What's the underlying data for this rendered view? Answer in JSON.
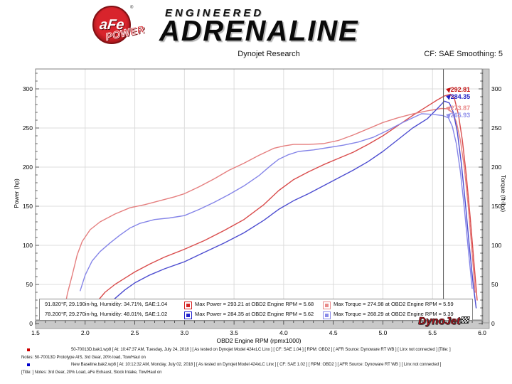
{
  "header": {
    "logo_circle_text": "aFe",
    "logo_power_text": "POWER",
    "logo_reg": "®",
    "brand_line1": "ENGINEERED",
    "brand_line2": "ADRENALINE"
  },
  "subheader": {
    "center": "Dynojet Research",
    "right": "CF: SAE Smoothing: 5"
  },
  "chart_data": {
    "type": "line",
    "xlabel": "OBD2 Engine RPM (rpmx1000)",
    "ylabel_left": "Power (hp)",
    "ylabel_right": "Torque (ft-lbs)",
    "xlim": [
      1.5,
      6.0
    ],
    "ylim": [
      0,
      325
    ],
    "grid": true,
    "x_ticks": [
      "1.5",
      "2.0",
      "2.5",
      "3.0",
      "3.5",
      "4.0",
      "4.5",
      "5.0",
      "5.5",
      "6.0"
    ],
    "y_ticks": [
      0,
      50,
      100,
      150,
      200,
      250,
      300
    ],
    "x_minor_step": 0.1,
    "y_minor_step": 10,
    "cursor_rpm": 5.61,
    "series": [
      {
        "name": "power-afe-intake",
        "unit": "hp",
        "color": "#d94c4c",
        "points": [
          [
            2.02,
            8
          ],
          [
            2.1,
            25
          ],
          [
            2.2,
            40
          ],
          [
            2.3,
            50
          ],
          [
            2.4,
            58
          ],
          [
            2.5,
            66
          ],
          [
            2.65,
            76
          ],
          [
            2.8,
            85
          ],
          [
            3.0,
            95
          ],
          [
            3.2,
            106
          ],
          [
            3.4,
            119
          ],
          [
            3.6,
            133
          ],
          [
            3.8,
            152
          ],
          [
            3.95,
            170
          ],
          [
            4.1,
            184
          ],
          [
            4.25,
            194
          ],
          [
            4.4,
            203
          ],
          [
            4.55,
            211
          ],
          [
            4.7,
            219
          ],
          [
            4.85,
            229
          ],
          [
            5.0,
            240
          ],
          [
            5.15,
            253
          ],
          [
            5.3,
            266
          ],
          [
            5.45,
            278
          ],
          [
            5.55,
            286
          ],
          [
            5.62,
            291
          ],
          [
            5.68,
            293.21
          ],
          [
            5.72,
            288
          ],
          [
            5.76,
            268
          ],
          [
            5.8,
            235
          ],
          [
            5.84,
            190
          ],
          [
            5.88,
            135
          ],
          [
            5.92,
            75
          ],
          [
            5.95,
            30
          ]
        ]
      },
      {
        "name": "torque-afe-intake",
        "unit": "ft-lbs",
        "color": "#e57f7f",
        "points": [
          [
            1.78,
            10
          ],
          [
            1.82,
            38
          ],
          [
            1.87,
            62
          ],
          [
            1.92,
            88
          ],
          [
            1.97,
            105
          ],
          [
            2.05,
            120
          ],
          [
            2.15,
            130
          ],
          [
            2.3,
            140
          ],
          [
            2.45,
            148
          ],
          [
            2.6,
            152
          ],
          [
            2.75,
            157
          ],
          [
            2.9,
            162
          ],
          [
            3.0,
            166
          ],
          [
            3.15,
            175
          ],
          [
            3.3,
            185
          ],
          [
            3.45,
            196
          ],
          [
            3.6,
            205
          ],
          [
            3.75,
            215
          ],
          [
            3.9,
            224
          ],
          [
            4.0,
            227
          ],
          [
            4.1,
            229
          ],
          [
            4.25,
            229
          ],
          [
            4.4,
            230
          ],
          [
            4.55,
            234
          ],
          [
            4.7,
            241
          ],
          [
            4.85,
            249
          ],
          [
            5.0,
            257
          ],
          [
            5.15,
            263
          ],
          [
            5.3,
            268
          ],
          [
            5.45,
            272
          ],
          [
            5.59,
            274.98
          ],
          [
            5.65,
            274.5
          ],
          [
            5.7,
            270
          ],
          [
            5.74,
            258
          ],
          [
            5.78,
            235
          ],
          [
            5.82,
            200
          ],
          [
            5.86,
            150
          ],
          [
            5.9,
            90
          ],
          [
            5.93,
            40
          ]
        ]
      },
      {
        "name": "power-baseline",
        "unit": "hp",
        "color": "#4d4dd0",
        "points": [
          [
            2.12,
            8
          ],
          [
            2.2,
            20
          ],
          [
            2.3,
            32
          ],
          [
            2.4,
            43
          ],
          [
            2.5,
            52
          ],
          [
            2.65,
            62
          ],
          [
            2.8,
            70
          ],
          [
            3.0,
            79
          ],
          [
            3.2,
            91
          ],
          [
            3.4,
            103
          ],
          [
            3.6,
            116
          ],
          [
            3.8,
            132
          ],
          [
            3.95,
            146
          ],
          [
            4.1,
            157
          ],
          [
            4.25,
            166
          ],
          [
            4.4,
            176
          ],
          [
            4.55,
            186
          ],
          [
            4.7,
            196
          ],
          [
            4.85,
            207
          ],
          [
            5.0,
            220
          ],
          [
            5.15,
            235
          ],
          [
            5.3,
            250
          ],
          [
            5.45,
            262
          ],
          [
            5.55,
            275
          ],
          [
            5.62,
            284.35
          ],
          [
            5.67,
            282
          ],
          [
            5.71,
            270
          ],
          [
            5.75,
            245
          ],
          [
            5.79,
            205
          ],
          [
            5.83,
            155
          ],
          [
            5.87,
            100
          ],
          [
            5.91,
            50
          ],
          [
            5.94,
            20
          ]
        ]
      },
      {
        "name": "torque-baseline",
        "unit": "ft-lbs",
        "color": "#8585e8",
        "points": [
          [
            1.95,
            42
          ],
          [
            2.0,
            62
          ],
          [
            2.07,
            80
          ],
          [
            2.15,
            92
          ],
          [
            2.25,
            103
          ],
          [
            2.35,
            113
          ],
          [
            2.45,
            122
          ],
          [
            2.55,
            128
          ],
          [
            2.7,
            133
          ],
          [
            2.85,
            135
          ],
          [
            3.0,
            138
          ],
          [
            3.15,
            146
          ],
          [
            3.3,
            155
          ],
          [
            3.45,
            165
          ],
          [
            3.6,
            176
          ],
          [
            3.75,
            189
          ],
          [
            3.87,
            202
          ],
          [
            3.95,
            210
          ],
          [
            4.05,
            216
          ],
          [
            4.15,
            220
          ],
          [
            4.3,
            222
          ],
          [
            4.45,
            225
          ],
          [
            4.6,
            228
          ],
          [
            4.75,
            232
          ],
          [
            4.9,
            238
          ],
          [
            5.05,
            247
          ],
          [
            5.2,
            257
          ],
          [
            5.3,
            263
          ],
          [
            5.39,
            268.29
          ],
          [
            5.5,
            267.5
          ],
          [
            5.6,
            266
          ],
          [
            5.66,
            263
          ],
          [
            5.7,
            252
          ],
          [
            5.74,
            230
          ],
          [
            5.78,
            195
          ],
          [
            5.82,
            148
          ],
          [
            5.86,
            95
          ],
          [
            5.9,
            45
          ]
        ]
      }
    ],
    "callouts": [
      {
        "text": "292.81",
        "value": 292.81,
        "color": "#c41111",
        "dy": -12
      },
      {
        "text": "284.35",
        "value": 284.35,
        "color": "#1f1fc4",
        "dy": -11
      },
      {
        "text": "273.87",
        "value": 273.87,
        "color": "#ea8b8b",
        "dy": -7
      },
      {
        "text": "265.93",
        "value": 265.93,
        "color": "#9090ea",
        "dy": -5
      }
    ],
    "legend": {
      "rows": [
        {
          "env": "91.820°F, 29.190in-hg, Humidity: 34.71%, SAE:1.04",
          "power_text": "Max Power = 293.21 at OBD2 Engine RPM = 5.68",
          "power_color": "#d42222",
          "torque_text": "Max Torque = 274.98 at OBD2 Engine RPM = 5.59",
          "torque_color": "#e88a8a"
        },
        {
          "env": "78.200°F, 29.270in-hg, Humidity: 48.01%, SAE:1.02",
          "power_text": "Max Power = 284.35 at OBD2 Engine RPM = 5.62",
          "power_color": "#2222cc",
          "torque_text": "Max Torque = 268.29 at OBD2 Engine RPM = 5.39",
          "torque_color": "#8a8ae8"
        }
      ]
    }
  },
  "watermark": {
    "text": "DynoJet"
  },
  "footer": {
    "lines": [
      {
        "bullet": "#cc0000",
        "indent": true,
        "text": "50-70013D.bak1.wp8 [ At: 10:47:37 AM, Tuesday, July 24, 2018 ] [ As tested on Dynojet Model 424xLC Linx ] [ CF: SAE 1.04 ] [ RPM: OBD2 ] [ AFR Source: Dynoware RT WB ] [ Linx not connected ] [Title: ]"
      },
      {
        "bullet": null,
        "indent": false,
        "text": "Notes: 50-70013D Prototype AIS, 3rd Gear, 20% load, Tow/Haul on"
      },
      {
        "bullet": "#0000cc",
        "indent": true,
        "text": "New Baseline.bak2.wp8 [ At: 10:12:32 AM, Monday, July 02, 2018 ] [ As tested on Dynojet Model 424xLC Linx ] [ CF: SAE 1.02 ] [ RPM: OBD2 ] [ AFR Source: Dynoware RT WB ] [ Linx not connected ]"
      },
      {
        "bullet": null,
        "indent": false,
        "text": "[Title: ] Notes: 3rd Gear, 20% Load, aFe Exhaust, Stock Intake, Tow/Haul on"
      }
    ]
  }
}
